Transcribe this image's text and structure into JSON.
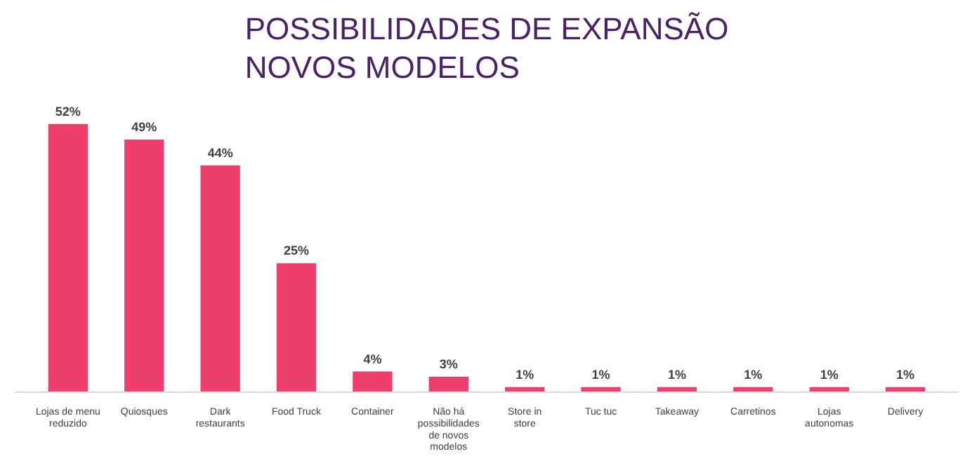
{
  "chart_data": {
    "type": "bar",
    "title": "POSSIBILIDADES DE EXPANSÃO NOVOS MODELOS",
    "categories": [
      "Lojas de menu reduzido",
      "Quiosques",
      "Dark restaurants",
      "Food Truck",
      "Container",
      "Não há possibilidades de novos modelos",
      "Store in store",
      "Tuc tuc",
      "Takeaway",
      "Carretinos",
      "Lojas autonomas",
      "Delivery"
    ],
    "values": [
      52,
      49,
      44,
      25,
      4,
      3,
      1,
      1,
      1,
      1,
      1,
      1
    ],
    "value_labels": [
      "52%",
      "49%",
      "44%",
      "25%",
      "4%",
      "3%",
      "1%",
      "1%",
      "1%",
      "1%",
      "1%",
      "1%"
    ],
    "color": "#ee3e6b",
    "grid": false
  }
}
